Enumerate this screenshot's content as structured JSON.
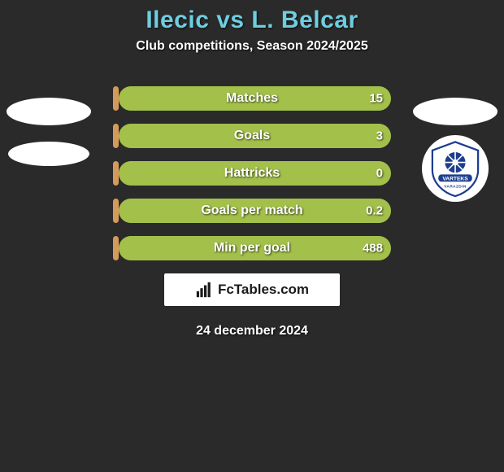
{
  "header": {
    "title": "Ilecic vs L. Belcar",
    "subtitle": "Club competitions, Season 2024/2025",
    "title_color": "#6fcde0"
  },
  "stats": {
    "bar_left_color": "#d49a5a",
    "bar_right_color": "#a3c04a",
    "rows": [
      {
        "label": "Matches",
        "left_val": "",
        "right_val": "15",
        "left_pct": 2,
        "right_pct": 98
      },
      {
        "label": "Goals",
        "left_val": "",
        "right_val": "3",
        "left_pct": 2,
        "right_pct": 98
      },
      {
        "label": "Hattricks",
        "left_val": "",
        "right_val": "0",
        "left_pct": 2,
        "right_pct": 98
      },
      {
        "label": "Goals per match",
        "left_val": "",
        "right_val": "0.2",
        "left_pct": 2,
        "right_pct": 98
      },
      {
        "label": "Min per goal",
        "left_val": "",
        "right_val": "488",
        "left_pct": 2,
        "right_pct": 98
      }
    ]
  },
  "brand": {
    "text": "FcTables.com"
  },
  "footer": {
    "date": "24 december 2024"
  },
  "right_club": {
    "name": "NK Varteks Varazdin",
    "primary": "#1d3e8f",
    "secondary": "#ffffff"
  },
  "colors": {
    "background": "#2a2a2a",
    "text": "#ffffff"
  }
}
